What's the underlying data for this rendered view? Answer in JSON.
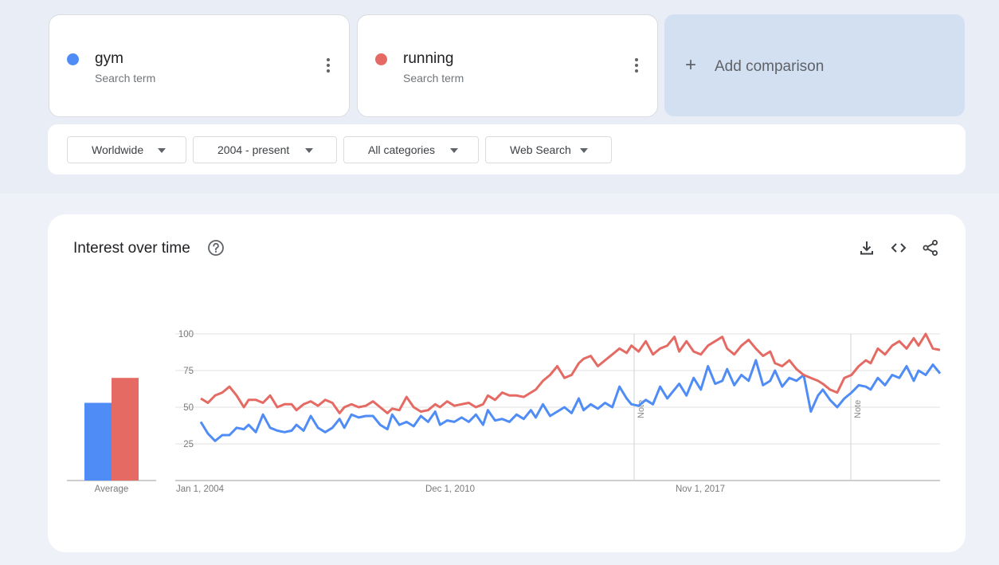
{
  "terms": [
    {
      "name": "gym",
      "subtitle": "Search term",
      "color": "#4f8cf5"
    },
    {
      "name": "running",
      "subtitle": "Search term",
      "color": "#e46a63"
    }
  ],
  "add_comparison": {
    "icon": "plus-icon",
    "label": "Add comparison"
  },
  "filters": [
    {
      "label": "Worldwide"
    },
    {
      "label": "2004 - present"
    },
    {
      "label": "All categories"
    },
    {
      "label": "Web Search"
    }
  ],
  "section": {
    "title": "Interest over time",
    "help_icon": "help-circle-icon",
    "tool_icons": [
      "download-icon",
      "embed-code-icon",
      "share-icon"
    ]
  },
  "chart_data": {
    "type": "line",
    "y_ticks": [
      "100",
      "75",
      "50",
      "25"
    ],
    "x_ticks": [
      "Jan 1, 2004",
      "Dec 1, 2010",
      "Nov 1, 2017"
    ],
    "ylim": [
      0,
      100
    ],
    "annotations": [
      "Note",
      "Note"
    ],
    "average": {
      "label": "Average",
      "values": [
        {
          "name": "gym",
          "value": 53
        },
        {
          "name": "running",
          "value": 70
        }
      ]
    },
    "series": [
      {
        "name": "gym",
        "color": "#4f8cf5",
        "values": [
          [
            2004.0,
            40
          ],
          [
            2004.3,
            32
          ],
          [
            2004.6,
            27
          ],
          [
            2004.9,
            31
          ],
          [
            2005.2,
            31
          ],
          [
            2005.5,
            36
          ],
          [
            2005.8,
            35
          ],
          [
            2006.0,
            38
          ],
          [
            2006.3,
            33
          ],
          [
            2006.6,
            45
          ],
          [
            2006.9,
            36
          ],
          [
            2007.2,
            34
          ],
          [
            2007.5,
            33
          ],
          [
            2007.8,
            34
          ],
          [
            2008.0,
            38
          ],
          [
            2008.3,
            34
          ],
          [
            2008.6,
            44
          ],
          [
            2008.9,
            36
          ],
          [
            2009.2,
            33
          ],
          [
            2009.5,
            36
          ],
          [
            2009.8,
            42
          ],
          [
            2010.0,
            36
          ],
          [
            2010.3,
            45
          ],
          [
            2010.6,
            43
          ],
          [
            2010.9,
            44
          ],
          [
            2011.2,
            44
          ],
          [
            2011.5,
            38
          ],
          [
            2011.8,
            35
          ],
          [
            2012.0,
            45
          ],
          [
            2012.3,
            38
          ],
          [
            2012.6,
            40
          ],
          [
            2012.9,
            37
          ],
          [
            2013.2,
            44
          ],
          [
            2013.5,
            40
          ],
          [
            2013.8,
            47
          ],
          [
            2014.0,
            38
          ],
          [
            2014.3,
            41
          ],
          [
            2014.6,
            40
          ],
          [
            2014.9,
            43
          ],
          [
            2015.2,
            40
          ],
          [
            2015.5,
            45
          ],
          [
            2015.8,
            38
          ],
          [
            2016.0,
            48
          ],
          [
            2016.3,
            41
          ],
          [
            2016.6,
            42
          ],
          [
            2016.9,
            40
          ],
          [
            2017.2,
            45
          ],
          [
            2017.5,
            42
          ],
          [
            2017.8,
            48
          ],
          [
            2018.0,
            43
          ],
          [
            2018.3,
            52
          ],
          [
            2018.6,
            44
          ],
          [
            2018.9,
            47
          ],
          [
            2019.2,
            50
          ],
          [
            2019.5,
            46
          ],
          [
            2019.8,
            56
          ],
          [
            2020.0,
            48
          ],
          [
            2020.3,
            52
          ],
          [
            2020.6,
            49
          ],
          [
            2020.9,
            53
          ],
          [
            2021.2,
            50
          ],
          [
            2021.5,
            64
          ],
          [
            2021.8,
            56
          ],
          [
            2022.0,
            52
          ],
          [
            2022.3,
            51
          ],
          [
            2022.6,
            55
          ],
          [
            2022.9,
            52
          ],
          [
            2023.2,
            64
          ],
          [
            2023.5,
            56
          ],
          [
            2023.8,
            62
          ],
          [
            2024.0,
            66
          ],
          [
            2024.3,
            58
          ],
          [
            2024.6,
            70
          ],
          [
            2024.9,
            62
          ],
          [
            2025.2,
            78
          ],
          [
            2025.5,
            66
          ],
          [
            2025.8,
            68
          ],
          [
            2026.0,
            76
          ],
          [
            2026.3,
            65
          ],
          [
            2026.6,
            72
          ],
          [
            2026.9,
            68
          ],
          [
            2027.2,
            82
          ],
          [
            2027.5,
            65
          ],
          [
            2027.8,
            68
          ],
          [
            2028.0,
            75
          ],
          [
            2028.3,
            64
          ],
          [
            2028.6,
            70
          ],
          [
            2028.9,
            68
          ],
          [
            2029.2,
            72
          ],
          [
            2029.5,
            47
          ],
          [
            2029.8,
            58
          ],
          [
            2030.0,
            62
          ],
          [
            2030.3,
            55
          ],
          [
            2030.6,
            50
          ],
          [
            2030.9,
            56
          ],
          [
            2031.2,
            60
          ],
          [
            2031.5,
            65
          ],
          [
            2031.8,
            64
          ],
          [
            2032.0,
            62
          ],
          [
            2032.3,
            70
          ],
          [
            2032.6,
            65
          ],
          [
            2032.9,
            72
          ],
          [
            2033.2,
            70
          ],
          [
            2033.5,
            78
          ],
          [
            2033.8,
            68
          ],
          [
            2034.0,
            75
          ],
          [
            2034.3,
            72
          ],
          [
            2034.6,
            79
          ],
          [
            2034.9,
            73
          ]
        ]
      },
      {
        "name": "running",
        "color": "#e46a63",
        "values": [
          [
            2004.0,
            56
          ],
          [
            2004.3,
            53
          ],
          [
            2004.6,
            58
          ],
          [
            2004.9,
            60
          ],
          [
            2005.2,
            64
          ],
          [
            2005.5,
            58
          ],
          [
            2005.8,
            50
          ],
          [
            2006.0,
            55
          ],
          [
            2006.3,
            55
          ],
          [
            2006.6,
            53
          ],
          [
            2006.9,
            58
          ],
          [
            2007.2,
            50
          ],
          [
            2007.5,
            52
          ],
          [
            2007.8,
            52
          ],
          [
            2008.0,
            48
          ],
          [
            2008.3,
            52
          ],
          [
            2008.6,
            54
          ],
          [
            2008.9,
            51
          ],
          [
            2009.2,
            55
          ],
          [
            2009.5,
            53
          ],
          [
            2009.8,
            46
          ],
          [
            2010.0,
            50
          ],
          [
            2010.3,
            52
          ],
          [
            2010.6,
            50
          ],
          [
            2010.9,
            51
          ],
          [
            2011.2,
            54
          ],
          [
            2011.5,
            50
          ],
          [
            2011.8,
            46
          ],
          [
            2012.0,
            49
          ],
          [
            2012.3,
            48
          ],
          [
            2012.6,
            57
          ],
          [
            2012.9,
            50
          ],
          [
            2013.2,
            47
          ],
          [
            2013.5,
            48
          ],
          [
            2013.8,
            52
          ],
          [
            2014.0,
            50
          ],
          [
            2014.3,
            54
          ],
          [
            2014.6,
            51
          ],
          [
            2014.9,
            52
          ],
          [
            2015.2,
            53
          ],
          [
            2015.5,
            50
          ],
          [
            2015.8,
            52
          ],
          [
            2016.0,
            58
          ],
          [
            2016.3,
            55
          ],
          [
            2016.6,
            60
          ],
          [
            2016.9,
            58
          ],
          [
            2017.2,
            58
          ],
          [
            2017.5,
            57
          ],
          [
            2017.8,
            60
          ],
          [
            2018.0,
            62
          ],
          [
            2018.3,
            68
          ],
          [
            2018.6,
            72
          ],
          [
            2018.9,
            78
          ],
          [
            2019.2,
            70
          ],
          [
            2019.5,
            72
          ],
          [
            2019.8,
            80
          ],
          [
            2020.0,
            83
          ],
          [
            2020.3,
            85
          ],
          [
            2020.6,
            78
          ],
          [
            2020.9,
            82
          ],
          [
            2021.2,
            86
          ],
          [
            2021.5,
            90
          ],
          [
            2021.8,
            87
          ],
          [
            2022.0,
            92
          ],
          [
            2022.3,
            88
          ],
          [
            2022.6,
            95
          ],
          [
            2022.9,
            86
          ],
          [
            2023.2,
            90
          ],
          [
            2023.5,
            92
          ],
          [
            2023.8,
            98
          ],
          [
            2024.0,
            88
          ],
          [
            2024.3,
            95
          ],
          [
            2024.6,
            88
          ],
          [
            2024.9,
            86
          ],
          [
            2025.2,
            92
          ],
          [
            2025.5,
            95
          ],
          [
            2025.8,
            98
          ],
          [
            2026.0,
            90
          ],
          [
            2026.3,
            86
          ],
          [
            2026.6,
            92
          ],
          [
            2026.9,
            96
          ],
          [
            2027.2,
            90
          ],
          [
            2027.5,
            85
          ],
          [
            2027.8,
            88
          ],
          [
            2028.0,
            80
          ],
          [
            2028.3,
            78
          ],
          [
            2028.6,
            82
          ],
          [
            2028.9,
            76
          ],
          [
            2029.2,
            72
          ],
          [
            2029.5,
            70
          ],
          [
            2029.8,
            68
          ],
          [
            2030.0,
            66
          ],
          [
            2030.3,
            62
          ],
          [
            2030.6,
            60
          ],
          [
            2030.9,
            70
          ],
          [
            2031.2,
            72
          ],
          [
            2031.5,
            78
          ],
          [
            2031.8,
            82
          ],
          [
            2032.0,
            80
          ],
          [
            2032.3,
            90
          ],
          [
            2032.6,
            86
          ],
          [
            2032.9,
            92
          ],
          [
            2033.2,
            95
          ],
          [
            2033.5,
            90
          ],
          [
            2033.8,
            97
          ],
          [
            2034.0,
            92
          ],
          [
            2034.3,
            100
          ],
          [
            2034.6,
            90
          ],
          [
            2034.9,
            89
          ]
        ]
      }
    ]
  }
}
